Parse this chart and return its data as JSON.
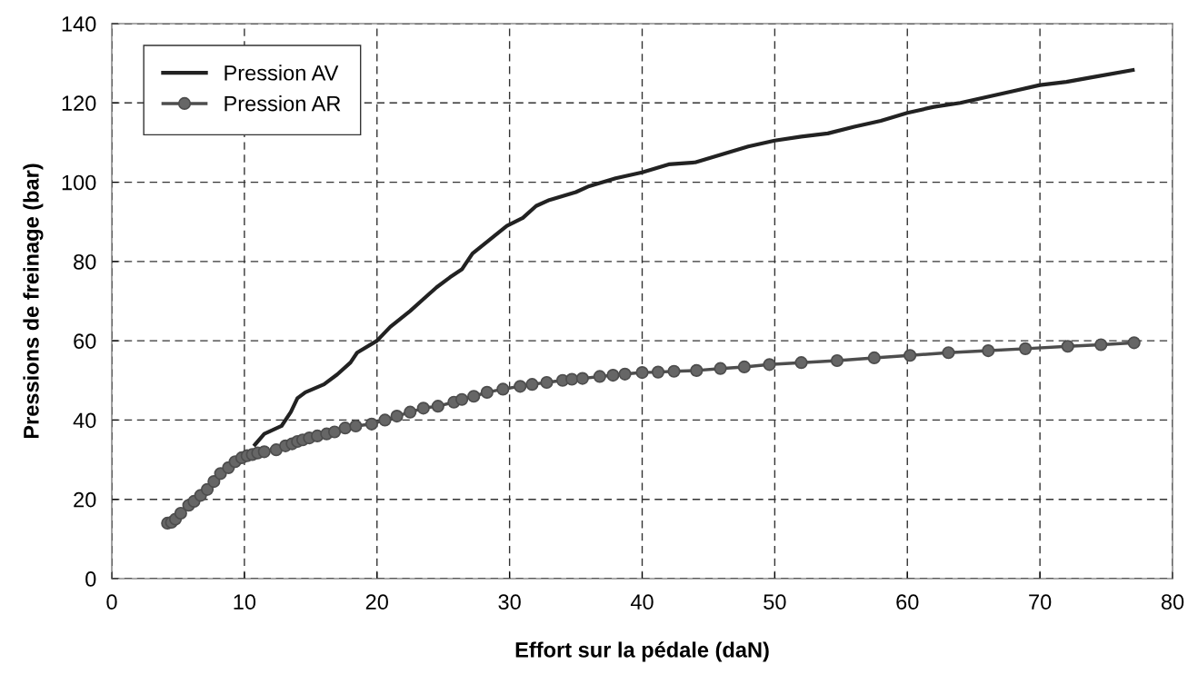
{
  "chart_data": {
    "type": "line",
    "xlabel": "Effort sur la pédale (daN)",
    "ylabel": "Pressions de freinage (bar)",
    "xlim": [
      0,
      80
    ],
    "xticks": [
      0,
      10,
      20,
      30,
      40,
      50,
      60,
      70,
      80
    ],
    "ylim": [
      0,
      140
    ],
    "yticks": [
      0,
      20,
      40,
      60,
      80,
      100,
      120,
      140
    ],
    "grid": true,
    "legend": "top left",
    "line_style": "solid",
    "series": [
      {
        "name": "Pression AV",
        "color": "#222222",
        "marker": "none",
        "x": [
          10.8,
          11.5,
          12.8,
          13.5,
          14.0,
          14.6,
          16,
          17,
          18,
          18.5,
          20,
          21,
          22.5,
          23.5,
          24.5,
          25.5,
          26.4,
          27.2,
          28.5,
          29.8,
          31,
          32,
          33,
          35,
          36,
          38,
          40,
          42,
          44,
          46,
          48,
          50,
          52,
          54,
          56,
          58,
          60,
          62,
          64,
          66,
          68,
          70,
          72,
          74,
          77
        ],
        "values": [
          33.8,
          36.5,
          38.5,
          42,
          45.5,
          47,
          49,
          51.5,
          54.5,
          57,
          60,
          63.5,
          67.5,
          70.5,
          73.5,
          76,
          78,
          82,
          85.5,
          89,
          91,
          94,
          95.5,
          97.5,
          99,
          101,
          102.5,
          104.5,
          105,
          107,
          109,
          110.5,
          111.5,
          112.3,
          114,
          115.5,
          117.5,
          119,
          120,
          121.5,
          123,
          124.5,
          125.3,
          126.5,
          128.3
        ]
      },
      {
        "name": "Pression AR",
        "color": "#4d4d4d",
        "marker": "circle",
        "x": [
          4.2,
          4.5,
          4.8,
          5.2,
          5.8,
          6.2,
          6.7,
          7.2,
          7.7,
          8.2,
          8.8,
          9.3,
          9.8,
          10.2,
          10.6,
          11.0,
          11.5,
          12.4,
          13.1,
          13.6,
          14.0,
          14.4,
          14.9,
          15.5,
          16.2,
          16.8,
          17.6,
          18.4,
          19.6,
          20.6,
          21.5,
          22.5,
          23.5,
          24.6,
          25.8,
          26.4,
          27.3,
          28.3,
          29.5,
          30.8,
          31.7,
          32.8,
          34,
          34.7,
          35.5,
          36.8,
          37.8,
          38.7,
          40,
          41.2,
          42.4,
          44.1,
          45.9,
          47.7,
          49.6,
          52,
          54.7,
          57.5,
          60.2,
          63.1,
          66.1,
          68.9,
          72.1,
          74.6,
          77.1
        ],
        "values": [
          14,
          14.2,
          15,
          16.5,
          18.5,
          19.5,
          21,
          22.5,
          24.5,
          26.5,
          28,
          29.5,
          30.5,
          31,
          31.3,
          31.7,
          32,
          32.5,
          33.5,
          34,
          34.6,
          35,
          35.5,
          36,
          36.5,
          37,
          38,
          38.5,
          39,
          40,
          41,
          42,
          43,
          43.5,
          44.5,
          45.2,
          46,
          47,
          47.8,
          48.5,
          49,
          49.5,
          50,
          50.3,
          50.5,
          51,
          51.3,
          51.6,
          52,
          52.1,
          52.3,
          52.5,
          53,
          53.4,
          54,
          54.5,
          55,
          55.7,
          56.3,
          57,
          57.5,
          58,
          58.6,
          59,
          59.5
        ]
      }
    ]
  }
}
